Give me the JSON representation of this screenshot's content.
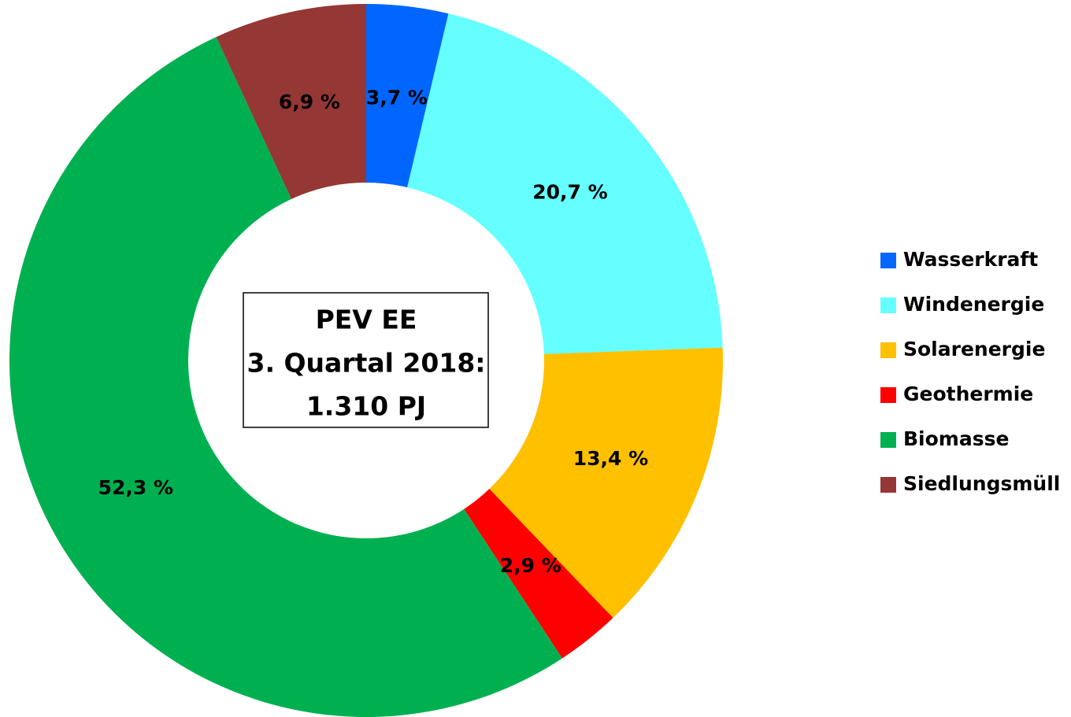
{
  "chart_data": {
    "type": "donut",
    "categories": [
      "Wasserkraft",
      "Windenergie",
      "Solarenergie",
      "Geothermie",
      "Biomasse",
      "Siedlungsmüll"
    ],
    "values": [
      3.7,
      20.7,
      13.4,
      2.9,
      52.3,
      6.9
    ],
    "value_labels": [
      "3,7 %",
      "20,7 %",
      "13,4 %",
      "2,9 %",
      "52,3 %",
      "6,9 %"
    ],
    "colors": [
      "#0066ff",
      "#66ffff",
      "#ffc000",
      "#ff0000",
      "#00b050",
      "#953735"
    ],
    "center_text": [
      "PEV EE",
      "3. Quartal 2018:",
      "1.310 PJ"
    ],
    "legend": "right"
  }
}
